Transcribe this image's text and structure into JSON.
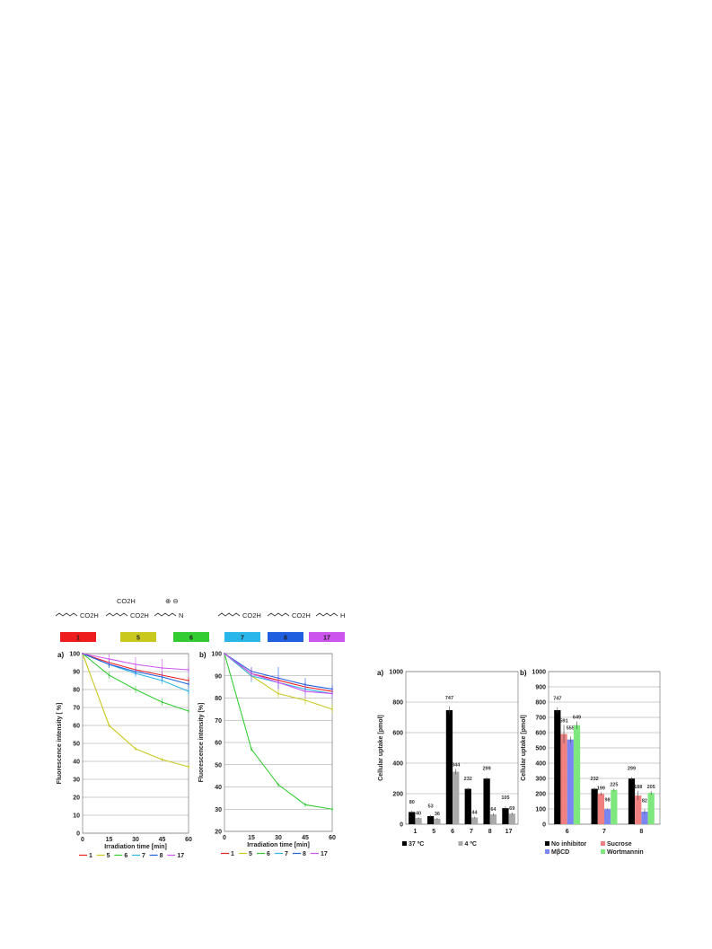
{
  "structures": [
    {
      "formula": "CO2H",
      "extra": ""
    },
    {
      "formula": "CO2H",
      "extra": "CO2H"
    },
    {
      "formula": "N",
      "extra": "⊕ ⊖"
    },
    {
      "formula": "CO2H",
      "extra": ""
    },
    {
      "formula": "CO2H",
      "extra": ""
    },
    {
      "formula": "H",
      "extra": ""
    }
  ],
  "compound_keys": [
    {
      "label": "1",
      "color": "#ee1c1c"
    },
    {
      "label": "5",
      "color": "#c8c81e"
    },
    {
      "label": "6",
      "color": "#33cc33"
    },
    {
      "label": "7",
      "color": "#29b6e8"
    },
    {
      "label": "8",
      "color": "#1f5fe0"
    },
    {
      "label": "17",
      "color": "#cc55ee"
    }
  ],
  "chart_data": [
    {
      "panel": "a)",
      "type": "line",
      "x": [
        0,
        15,
        30,
        45,
        60
      ],
      "xlabel": "Irradiation time [min]",
      "ylabel": "Fluorescence intensity [ %]",
      "ylim": [
        0,
        100
      ],
      "yticks": [
        0,
        10,
        20,
        30,
        40,
        50,
        60,
        70,
        80,
        90,
        100
      ],
      "grid": true,
      "legend_position": "bottom",
      "series": [
        {
          "name": "1",
          "color": "#ee1c1c",
          "values": [
            100,
            95,
            91,
            88,
            85
          ],
          "err": [
            0,
            2,
            2,
            2,
            2
          ]
        },
        {
          "name": "5",
          "color": "#c8c81e",
          "values": [
            100,
            60,
            47,
            41,
            37
          ],
          "err": [
            0,
            1,
            1,
            1,
            1
          ]
        },
        {
          "name": "6",
          "color": "#33cc33",
          "values": [
            100,
            88,
            80,
            73,
            68
          ],
          "err": [
            0,
            2,
            2,
            2,
            1
          ]
        },
        {
          "name": "7",
          "color": "#29b6e8",
          "values": [
            100,
            94,
            89,
            85,
            79
          ],
          "err": [
            0,
            2,
            2,
            2,
            2
          ]
        },
        {
          "name": "8",
          "color": "#1f5fe0",
          "values": [
            100,
            94,
            90,
            87,
            83
          ],
          "err": [
            0,
            2,
            2,
            2,
            2
          ]
        },
        {
          "name": "17",
          "color": "#cc55ee",
          "values": [
            100,
            97,
            94,
            92,
            91
          ],
          "err": [
            0,
            3,
            4,
            5,
            2
          ]
        }
      ]
    },
    {
      "panel": "b)",
      "type": "line",
      "x": [
        0,
        15,
        30,
        45,
        60
      ],
      "xlabel": "Irradiation time [min]",
      "ylabel": "Fluorescence intensity [%]",
      "ylim": [
        20,
        100
      ],
      "yticks": [
        20,
        30,
        40,
        50,
        60,
        70,
        80,
        90,
        100
      ],
      "grid": true,
      "legend_position": "bottom",
      "series": [
        {
          "name": "1",
          "color": "#ee1c1c",
          "values": [
            100,
            91,
            88,
            85,
            83
          ],
          "err": [
            0,
            2,
            2,
            2,
            2
          ]
        },
        {
          "name": "5",
          "color": "#c8c81e",
          "values": [
            100,
            90,
            82,
            79,
            75
          ],
          "err": [
            0,
            2,
            2,
            2,
            2
          ]
        },
        {
          "name": "6",
          "color": "#33cc33",
          "values": [
            100,
            57,
            41,
            32,
            30
          ],
          "err": [
            0,
            1,
            1,
            1,
            1
          ]
        },
        {
          "name": "7",
          "color": "#29b6e8",
          "values": [
            100,
            90,
            87,
            84,
            82
          ],
          "err": [
            0,
            3,
            3,
            3,
            2
          ]
        },
        {
          "name": "8",
          "color": "#1f5fe0",
          "values": [
            100,
            92,
            89,
            86,
            84
          ],
          "err": [
            0,
            2,
            5,
            3,
            2
          ]
        },
        {
          "name": "17",
          "color": "#cc55ee",
          "values": [
            100,
            91,
            87,
            83,
            82
          ],
          "err": [
            0,
            3,
            3,
            3,
            2
          ]
        }
      ]
    },
    {
      "panel": "a)",
      "type": "bar",
      "categories": [
        "1",
        "5",
        "6",
        "7",
        "8",
        "17"
      ],
      "ylabel": "Cellular uptake [pmol]",
      "ylim": [
        0,
        1000
      ],
      "yticks": [
        0,
        200,
        400,
        600,
        800,
        1000
      ],
      "grid": true,
      "legend_position": "bottom",
      "series": [
        {
          "name": "37 ºC",
          "color": "#000000",
          "values": [
            80,
            53,
            747,
            232,
            299,
            105
          ],
          "err": [
            8,
            8,
            25,
            8,
            10,
            12
          ]
        },
        {
          "name": "4 ºC",
          "color": "#aaaaaa",
          "values": [
            40,
            36,
            344,
            44,
            64,
            69
          ],
          "err": [
            5,
            5,
            18,
            5,
            8,
            8
          ]
        }
      ]
    },
    {
      "panel": "b)",
      "type": "bar",
      "categories": [
        "6",
        "7",
        "8"
      ],
      "ylabel": "Cellular uptake [pmol]",
      "ylim": [
        0,
        1000
      ],
      "yticks": [
        0,
        100,
        200,
        300,
        400,
        500,
        600,
        700,
        800,
        900,
        1000
      ],
      "grid": true,
      "legend_position": "bottom",
      "series": [
        {
          "name": "No inhibitor",
          "color": "#000000",
          "values": [
            747,
            232,
            299
          ],
          "err": [
            20,
            8,
            10
          ]
        },
        {
          "name": "Sucrose",
          "color": "#f08080",
          "values": [
            591,
            199,
            188
          ],
          "err": [
            60,
            10,
            30
          ]
        },
        {
          "name": "MβCD",
          "color": "#7b86f2",
          "values": [
            555,
            98,
            82
          ],
          "err": [
            20,
            5,
            15
          ]
        },
        {
          "name": "Wortmannin",
          "color": "#7ee87e",
          "values": [
            649,
            225,
            205
          ],
          "err": [
            25,
            8,
            12
          ]
        }
      ]
    }
  ]
}
